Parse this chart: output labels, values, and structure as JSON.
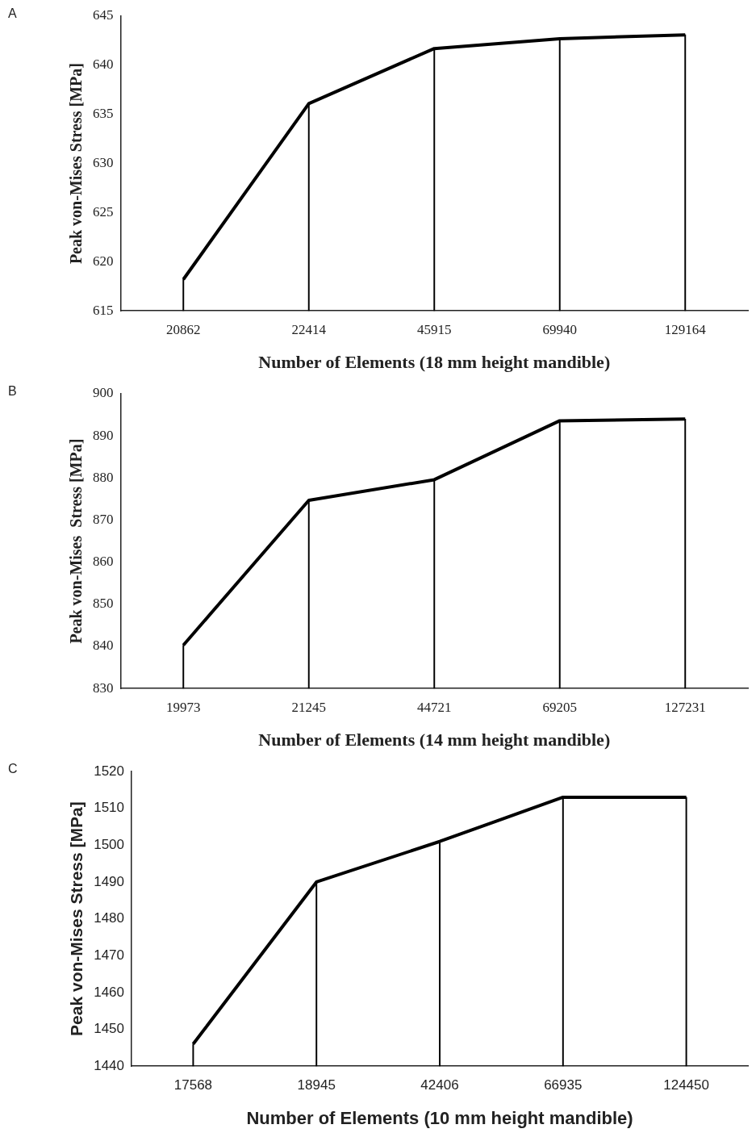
{
  "chart_data": [
    {
      "type": "line",
      "annotations": [
        "A"
      ],
      "xlabel": "Number of Elements (18 mm height mandible)",
      "ylabel": "Peak von-Mises Stress [MPa]",
      "categories": [
        "20862",
        "22414",
        "45915",
        "69940",
        "129164"
      ],
      "series": [
        {
          "type": "bar",
          "color": "#000000",
          "values": [
            618.2,
            636.1,
            641.7,
            642.7,
            643.1
          ]
        },
        {
          "color": "#000000",
          "values": [
            618.2,
            636.1,
            641.7,
            642.7,
            643.1
          ]
        }
      ],
      "ylim": [
        615,
        645
      ],
      "yticks": [
        615,
        620,
        625,
        630,
        635,
        640,
        645
      ],
      "grid": false,
      "legend": false,
      "marker": "none",
      "line_style": "solid"
    },
    {
      "type": "line",
      "annotations": [
        "B"
      ],
      "xlabel": "Number of Elements (14 mm height mandible)",
      "ylabel": "Peak von-Mises  Stress [MPa]",
      "categories": [
        "19973",
        "21245",
        "44721",
        "69205",
        "127231"
      ],
      "series": [
        {
          "type": "bar",
          "color": "#000000",
          "values": [
            840.3,
            874.7,
            879.6,
            893.6,
            894.0
          ]
        },
        {
          "color": "#000000",
          "values": [
            840.3,
            874.7,
            879.6,
            893.6,
            894.0
          ]
        }
      ],
      "ylim": [
        830,
        900
      ],
      "yticks": [
        830,
        840,
        850,
        860,
        870,
        880,
        890,
        900
      ],
      "grid": false,
      "legend": false,
      "marker": "none",
      "line_style": "solid"
    },
    {
      "type": "line",
      "annotations": [
        "C"
      ],
      "xlabel": "Number of Elements (10 mm height mandible)",
      "ylabel": "Peak von-Mises Stress [MPa]",
      "categories": [
        "17568",
        "18945",
        "42406",
        "66935",
        "124450"
      ],
      "series": [
        {
          "type": "bar",
          "color": "#000000",
          "values": [
            1446,
            1490,
            1501,
            1513,
            1513
          ]
        },
        {
          "color": "#000000",
          "values": [
            1446,
            1490,
            1501,
            1513,
            1513
          ]
        }
      ],
      "ylim": [
        1440,
        1520
      ],
      "yticks": [
        1440,
        1450,
        1460,
        1470,
        1480,
        1490,
        1500,
        1510,
        1520
      ],
      "grid": false,
      "legend": false,
      "marker": "none",
      "line_style": "solid"
    }
  ]
}
